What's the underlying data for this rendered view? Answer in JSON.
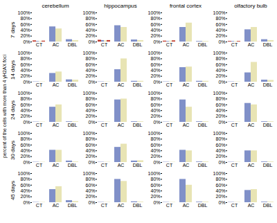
{
  "ylabel": "percent of the cells with more than 4 γH2AX foci",
  "chart_data": [
    {
      "type": "bar",
      "title": "cerebellum",
      "ylabel": "7 days",
      "categories": [
        "CT",
        "AC",
        "DBL"
      ],
      "series": [
        {
          "color": "#8090c8",
          "values": [
            2,
            52,
            8
          ]
        },
        {
          "color": "#e8e4b4",
          "values": [
            2,
            45,
            5
          ]
        },
        {
          "color": "#c0392b",
          "values": [
            4,
            null,
            null
          ]
        },
        {
          "color": "#c0392b",
          "values": [
            3,
            null,
            null
          ]
        }
      ],
      "ylim": [
        0,
        100
      ],
      "yticks": [
        {
          "value": 0,
          "label": "0%"
        },
        {
          "value": 20,
          "label": "20%"
        },
        {
          "value": 40,
          "label": "40%"
        },
        {
          "value": 60,
          "label": "60%"
        },
        {
          "value": 80,
          "label": "80%"
        },
        {
          "value": 100,
          "label": "100%"
        }
      ]
    },
    {
      "type": "bar",
      "title": "hippocampus",
      "categories": [
        "CT",
        "AC",
        "DBL"
      ],
      "series": [
        {
          "color": "#8090c8",
          "values": [
            5,
            56,
            7
          ]
        },
        {
          "color": "#e8e4b4",
          "values": [
            4,
            50,
            5
          ]
        },
        {
          "color": "#c0392b",
          "values": [
            6,
            null,
            null
          ]
        },
        {
          "color": "#c0392b",
          "values": [
            5,
            null,
            null
          ]
        }
      ],
      "ylim": [
        0,
        100
      ],
      "yticks": [
        {
          "value": 0,
          "label": "0%"
        },
        {
          "value": 20,
          "label": "20%"
        },
        {
          "value": 40,
          "label": "40%"
        },
        {
          "value": 60,
          "label": "60%"
        },
        {
          "value": 80,
          "label": "80%"
        },
        {
          "value": 100,
          "label": "100%"
        }
      ]
    },
    {
      "type": "bar",
      "title": "frontal cortex",
      "categories": [
        "CT",
        "AC",
        "DBL"
      ],
      "series": [
        {
          "color": "#8090c8",
          "values": [
            2,
            50,
            2
          ]
        },
        {
          "color": "#e8e4b4",
          "values": [
            3,
            65,
            2
          ]
        },
        {
          "color": "#c0392b",
          "values": [
            3,
            null,
            null
          ]
        },
        {
          "color": "#c0392b",
          "values": [
            4,
            null,
            null
          ]
        }
      ],
      "ylim": [
        0,
        100
      ],
      "yticks": [
        {
          "value": 0,
          "label": "0%"
        },
        {
          "value": 20,
          "label": "20%"
        },
        {
          "value": 40,
          "label": "40%"
        },
        {
          "value": 60,
          "label": "60%"
        },
        {
          "value": 80,
          "label": "80%"
        },
        {
          "value": 100,
          "label": "100%"
        }
      ]
    },
    {
      "type": "bar",
      "title": "olfactory bulb",
      "categories": [
        "CT",
        "AC",
        "DBL"
      ],
      "series": [
        {
          "color": "#8090c8",
          "values": [
            2,
            42,
            8
          ]
        },
        {
          "color": "#e8e4b4",
          "values": [
            2,
            50,
            5
          ]
        },
        {
          "color": "#c0392b",
          "values": [
            2,
            null,
            null
          ]
        },
        {
          "color": "#c0392b",
          "values": [
            2,
            null,
            null
          ]
        }
      ],
      "ylim": [
        0,
        100
      ],
      "yticks": [
        {
          "value": 0,
          "label": "0%"
        },
        {
          "value": 20,
          "label": "20%"
        },
        {
          "value": 40,
          "label": "40%"
        },
        {
          "value": 60,
          "label": "60%"
        },
        {
          "value": 80,
          "label": "80%"
        },
        {
          "value": 100,
          "label": "100%"
        }
      ]
    },
    {
      "type": "bar",
      "ylabel": "14 days",
      "categories": [
        "CT",
        "AC",
        "DBL"
      ],
      "series": [
        {
          "color": "#8090c8",
          "values": [
            1,
            30,
            8
          ]
        },
        {
          "color": "#e8e4b4",
          "values": [
            1,
            35,
            7
          ]
        }
      ],
      "ylim": [
        0,
        100
      ],
      "yticks": [
        {
          "value": 0,
          "label": "0%"
        },
        {
          "value": 20,
          "label": "20%"
        },
        {
          "value": 40,
          "label": "40%"
        },
        {
          "value": 60,
          "label": "60%"
        },
        {
          "value": 80,
          "label": "80%"
        },
        {
          "value": 100,
          "label": "100%"
        }
      ]
    },
    {
      "type": "bar",
      "categories": [
        "CT",
        "AC",
        "DBL"
      ],
      "series": [
        {
          "color": "#8090c8",
          "values": [
            1,
            43,
            3
          ]
        },
        {
          "color": "#e8e4b4",
          "values": [
            1,
            80,
            3
          ]
        }
      ],
      "ylim": [
        0,
        100
      ],
      "yticks": [
        {
          "value": 0,
          "label": "0%"
        },
        {
          "value": 20,
          "label": "20%"
        },
        {
          "value": 40,
          "label": "40%"
        },
        {
          "value": 60,
          "label": "60%"
        },
        {
          "value": 80,
          "label": "80%"
        },
        {
          "value": 100,
          "label": "100%"
        }
      ]
    },
    {
      "type": "bar",
      "categories": [
        "CT",
        "AC",
        "DBL"
      ],
      "series": [
        {
          "color": "#8090c8",
          "values": [
            1,
            50,
            3
          ]
        },
        {
          "color": "#e8e4b4",
          "values": [
            1,
            52,
            3
          ]
        }
      ],
      "ylim": [
        0,
        100
      ],
      "yticks": [
        {
          "value": 0,
          "label": "0%"
        },
        {
          "value": 20,
          "label": "20%"
        },
        {
          "value": 40,
          "label": "40%"
        },
        {
          "value": 60,
          "label": "60%"
        },
        {
          "value": 80,
          "label": "80%"
        },
        {
          "value": 100,
          "label": "100%"
        }
      ]
    },
    {
      "type": "bar",
      "categories": [
        "CT",
        "AC",
        "DBL"
      ],
      "series": [
        {
          "color": "#8090c8",
          "values": [
            1,
            32,
            7
          ]
        },
        {
          "color": "#e8e4b4",
          "values": [
            1,
            68,
            6
          ]
        }
      ],
      "ylim": [
        0,
        100
      ],
      "yticks": [
        {
          "value": 0,
          "label": "0%"
        },
        {
          "value": 20,
          "label": "20%"
        },
        {
          "value": 40,
          "label": "40%"
        },
        {
          "value": 60,
          "label": "60%"
        },
        {
          "value": 80,
          "label": "80%"
        },
        {
          "value": 100,
          "label": "100%"
        }
      ]
    },
    {
      "type": "bar",
      "ylabel": "24 days",
      "categories": [
        "CT",
        "AC",
        "DBL"
      ],
      "series": [
        {
          "color": "#8090c8",
          "values": [
            1,
            52,
            2
          ]
        },
        {
          "color": "#e8e4b4",
          "values": [
            1,
            60,
            2
          ]
        }
      ],
      "ylim": [
        0,
        100
      ],
      "yticks": [
        {
          "value": 0,
          "label": "0%"
        },
        {
          "value": 20,
          "label": "20%"
        },
        {
          "value": 40,
          "label": "40%"
        },
        {
          "value": 60,
          "label": "60%"
        },
        {
          "value": 80,
          "label": "80%"
        },
        {
          "value": 100,
          "label": "100%"
        }
      ]
    },
    {
      "type": "bar",
      "categories": [
        "CT",
        "AC",
        "DBL"
      ],
      "series": [
        {
          "color": "#8090c8",
          "values": [
            1,
            77,
            2
          ]
        },
        {
          "color": "#e8e4b4",
          "values": [
            1,
            80,
            2
          ]
        }
      ],
      "ylim": [
        0,
        100
      ],
      "yticks": [
        {
          "value": 0,
          "label": "0%"
        },
        {
          "value": 20,
          "label": "20%"
        },
        {
          "value": 40,
          "label": "40%"
        },
        {
          "value": 60,
          "label": "60%"
        },
        {
          "value": 80,
          "label": "80%"
        },
        {
          "value": 100,
          "label": "100%"
        }
      ]
    },
    {
      "type": "bar",
      "categories": [
        "CT",
        "AC",
        "DBL"
      ],
      "series": [
        {
          "color": "#8090c8",
          "values": [
            1,
            77,
            2
          ]
        },
        {
          "color": "#e8e4b4",
          "values": [
            1,
            52,
            2
          ]
        }
      ],
      "ylim": [
        0,
        100
      ],
      "yticks": [
        {
          "value": 0,
          "label": "0%"
        },
        {
          "value": 20,
          "label": "20%"
        },
        {
          "value": 40,
          "label": "40%"
        },
        {
          "value": 60,
          "label": "60%"
        },
        {
          "value": 80,
          "label": "80%"
        },
        {
          "value": 100,
          "label": "100%"
        }
      ]
    },
    {
      "type": "bar",
      "categories": [
        "CT",
        "AC",
        "DBL"
      ],
      "series": [
        {
          "color": "#8090c8",
          "values": [
            1,
            65,
            2
          ]
        },
        {
          "color": "#e8e4b4",
          "values": [
            1,
            60,
            2
          ]
        }
      ],
      "ylim": [
        0,
        100
      ],
      "yticks": [
        {
          "value": 0,
          "label": "0%"
        },
        {
          "value": 20,
          "label": "20%"
        },
        {
          "value": 40,
          "label": "40%"
        },
        {
          "value": 60,
          "label": "60%"
        },
        {
          "value": 80,
          "label": "80%"
        },
        {
          "value": 100,
          "label": "100%"
        }
      ]
    },
    {
      "type": "bar",
      "ylabel": "30 days",
      "categories": [
        "CT",
        "AC",
        "DBL"
      ],
      "series": [
        {
          "color": "#8090c8",
          "values": [
            1,
            42,
            5
          ]
        },
        {
          "color": "#e8e4b4",
          "values": [
            1,
            42,
            2
          ]
        }
      ],
      "ylim": [
        0,
        100
      ],
      "yticks": [
        {
          "value": 0,
          "label": "0%"
        },
        {
          "value": 20,
          "label": "20%"
        },
        {
          "value": 40,
          "label": "40%"
        },
        {
          "value": 60,
          "label": "60%"
        },
        {
          "value": 80,
          "label": "80%"
        },
        {
          "value": 100,
          "label": "100%"
        }
      ]
    },
    {
      "type": "bar",
      "categories": [
        "CT",
        "AC",
        "DBL"
      ],
      "series": [
        {
          "color": "#8090c8",
          "values": [
            1,
            52,
            5
          ]
        },
        {
          "color": "#e8e4b4",
          "values": [
            1,
            63,
            6
          ]
        }
      ],
      "ylim": [
        0,
        100
      ],
      "yticks": [
        {
          "value": 0,
          "label": "0%"
        },
        {
          "value": 20,
          "label": "20%"
        },
        {
          "value": 40,
          "label": "40%"
        },
        {
          "value": 60,
          "label": "60%"
        },
        {
          "value": 80,
          "label": "80%"
        },
        {
          "value": 100,
          "label": "100%"
        }
      ]
    },
    {
      "type": "bar",
      "categories": [
        "CT",
        "AC",
        "DBL"
      ],
      "series": [
        {
          "color": "#8090c8",
          "values": [
            1,
            42,
            2
          ]
        },
        {
          "color": "#e8e4b4",
          "values": [
            1,
            40,
            2
          ]
        }
      ],
      "ylim": [
        0,
        100
      ],
      "yticks": [
        {
          "value": 0,
          "label": "0%"
        },
        {
          "value": 20,
          "label": "20%"
        },
        {
          "value": 40,
          "label": "40%"
        },
        {
          "value": 60,
          "label": "60%"
        },
        {
          "value": 80,
          "label": "80%"
        },
        {
          "value": 100,
          "label": "100%"
        }
      ]
    },
    {
      "type": "bar",
      "categories": [
        "CT",
        "AC",
        "DBL"
      ],
      "series": [
        {
          "color": "#8090c8",
          "values": [
            1,
            40,
            2
          ]
        },
        {
          "color": "#e8e4b4",
          "values": [
            1,
            40,
            2
          ]
        }
      ],
      "ylim": [
        0,
        100
      ],
      "yticks": [
        {
          "value": 0,
          "label": "0%"
        },
        {
          "value": 20,
          "label": "20%"
        },
        {
          "value": 40,
          "label": "40%"
        },
        {
          "value": 60,
          "label": "60%"
        },
        {
          "value": 80,
          "label": "80%"
        },
        {
          "value": 100,
          "label": "100%"
        }
      ]
    },
    {
      "type": "bar",
      "ylabel": "45 days",
      "categories": [
        "CT",
        "AC",
        "DBL"
      ],
      "series": [
        {
          "color": "#8090c8",
          "values": [
            1,
            45,
            7
          ]
        },
        {
          "color": "#e8e4b4",
          "values": [
            1,
            55,
            4
          ]
        }
      ],
      "ylim": [
        0,
        100
      ],
      "yticks": [
        {
          "value": 0,
          "label": "0%"
        },
        {
          "value": 20,
          "label": "20%"
        },
        {
          "value": 40,
          "label": "40%"
        },
        {
          "value": 60,
          "label": "60%"
        },
        {
          "value": 80,
          "label": "80%"
        },
        {
          "value": 100,
          "label": "100%"
        }
      ]
    },
    {
      "type": "bar",
      "categories": [
        "CT",
        "AC",
        "DBL"
      ],
      "series": [
        {
          "color": "#8090c8",
          "values": [
            1,
            80,
            3
          ]
        },
        {
          "color": "#e8e4b4",
          "values": [
            1,
            73,
            2
          ]
        }
      ],
      "ylim": [
        0,
        100
      ],
      "yticks": [
        {
          "value": 0,
          "label": "0%"
        },
        {
          "value": 20,
          "label": "20%"
        },
        {
          "value": 40,
          "label": "40%"
        },
        {
          "value": 60,
          "label": "60%"
        },
        {
          "value": 80,
          "label": "80%"
        },
        {
          "value": 100,
          "label": "100%"
        }
      ]
    },
    {
      "type": "bar",
      "categories": [
        "CT",
        "AC",
        "DBL"
      ],
      "series": [
        {
          "color": "#8090c8",
          "values": [
            1,
            80,
            2
          ]
        },
        {
          "color": "#e8e4b4",
          "values": [
            1,
            60,
            2
          ]
        }
      ],
      "ylim": [
        0,
        100
      ],
      "yticks": [
        {
          "value": 0,
          "label": "0%"
        },
        {
          "value": 20,
          "label": "20%"
        },
        {
          "value": 40,
          "label": "40%"
        },
        {
          "value": 60,
          "label": "60%"
        },
        {
          "value": 80,
          "label": "80%"
        },
        {
          "value": 100,
          "label": "100%"
        }
      ]
    },
    {
      "type": "bar",
      "categories": [
        "CT",
        "AC",
        "DBL"
      ],
      "series": [
        {
          "color": "#8090c8",
          "values": [
            1,
            42,
            2
          ]
        },
        {
          "color": "#e8e4b4",
          "values": [
            1,
            45,
            2
          ]
        }
      ],
      "ylim": [
        0,
        100
      ],
      "yticks": [
        {
          "value": 0,
          "label": "0%"
        },
        {
          "value": 20,
          "label": "20%"
        },
        {
          "value": 40,
          "label": "40%"
        },
        {
          "value": 60,
          "label": "60%"
        },
        {
          "value": 80,
          "label": "80%"
        },
        {
          "value": 100,
          "label": "100%"
        }
      ]
    }
  ]
}
